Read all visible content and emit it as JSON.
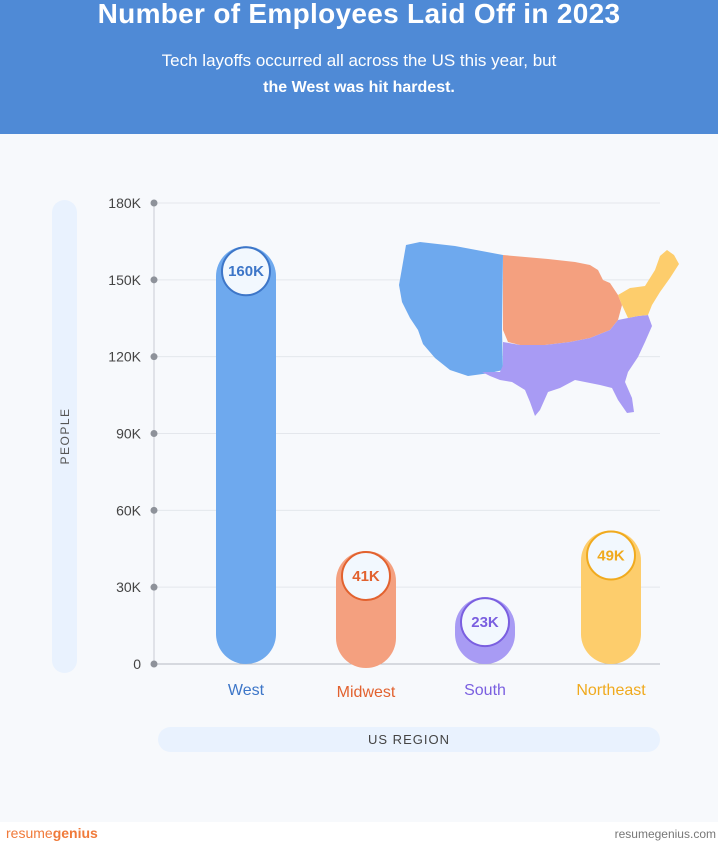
{
  "header": {
    "title": "Number of Employees Laid Off in 2023",
    "subtitle_line1": "Tech layoffs occurred all across the US this year, but",
    "subtitle_line2": "the West was hit hardest."
  },
  "chart_data": {
    "type": "bar",
    "title": "Number of Employees Laid Off in 2023",
    "xlabel": "US REGION",
    "ylabel": "PEOPLE",
    "ylim": [
      0,
      180000
    ],
    "y_ticks": [
      0,
      30000,
      60000,
      90000,
      120000,
      150000,
      180000
    ],
    "y_tick_labels": [
      "0",
      "30K",
      "60K",
      "90K",
      "120K",
      "150K",
      "180K"
    ],
    "categories": [
      "West",
      "Midwest",
      "South",
      "Northeast"
    ],
    "values": [
      160000,
      41000,
      23000,
      49000
    ],
    "data_labels": [
      "160K",
      "41K",
      "23K",
      "49K"
    ],
    "colors": [
      "#6ea9ee",
      "#f4a07f",
      "#a89bf4",
      "#fdcd6c"
    ],
    "label_colors": [
      "#3d76c8",
      "#e2622f",
      "#7a5fe0",
      "#f0aa1e"
    ],
    "grid": true,
    "inset": "US map colored by region"
  },
  "footer": {
    "brand_part1": "resume",
    "brand_part2": "genius",
    "url": "resumegenius.com"
  }
}
